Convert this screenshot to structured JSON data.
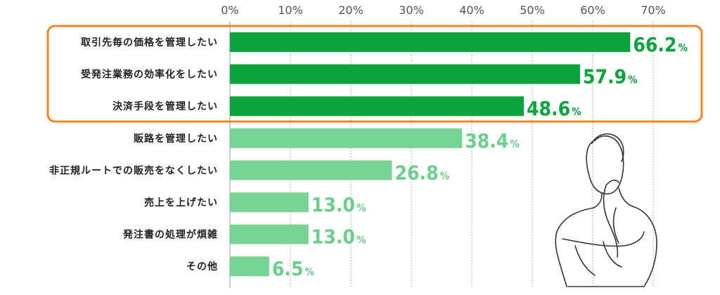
{
  "chart_data": {
    "type": "bar",
    "orientation": "horizontal",
    "categories": [
      "取引先毎の価格を管理したい",
      "受発注業務の効率化をしたい",
      "決済手段を管理したい",
      "販路を管理したい",
      "非正規ルートでの販売をなくしたい",
      "売上を上げたい",
      "発注書の処理が煩雑",
      "その他"
    ],
    "values": [
      66.2,
      57.9,
      48.6,
      38.4,
      26.8,
      13.0,
      13.0,
      6.5
    ],
    "value_labels": [
      "66.2",
      "57.9",
      "48.6",
      "38.4",
      "26.8",
      "13.0",
      "13.0",
      "6.5"
    ],
    "value_unit": "%",
    "xticks": [
      "0%",
      "10%",
      "20%",
      "30%",
      "40%",
      "50%",
      "60%",
      "70%"
    ],
    "xlim": [
      0,
      70
    ],
    "grid": true,
    "highlight_top_n": 3,
    "colors": {
      "highlight_bar": "#0aa33c",
      "normal_bar": "#77d396",
      "highlight_text": "#0aa33c",
      "normal_text": "#6ccf8d",
      "highlight_box": "#f5841f",
      "grid": "#b5b5b5"
    },
    "decoration": "thinking-person-line-drawing"
  }
}
